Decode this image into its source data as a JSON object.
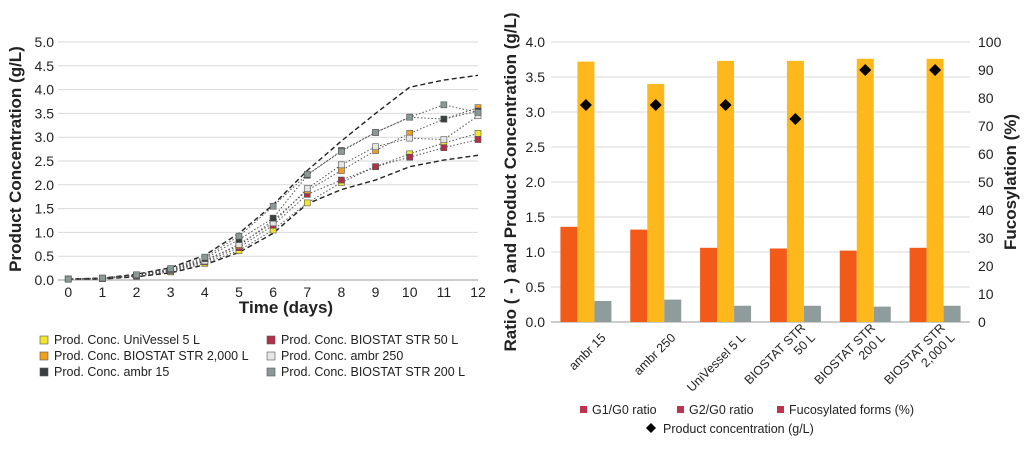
{
  "chart_data": [
    {
      "type": "line",
      "xlabel": "Time (days)",
      "ylabel": "Product Concentration (g/L)",
      "x": [
        0,
        1,
        2,
        3,
        4,
        5,
        6,
        7,
        8,
        9,
        10,
        11,
        12
      ],
      "xlim": [
        -0.3,
        12
      ],
      "ylim": [
        0,
        5
      ],
      "x_ticks": [
        "0",
        "1",
        "2",
        "3",
        "4",
        "5",
        "6",
        "7",
        "8",
        "9",
        "10",
        "11",
        "12"
      ],
      "y_ticks": [
        "0.0",
        "0.5",
        "1.0",
        "1.5",
        "2.0",
        "2.5",
        "3.0",
        "3.5",
        "4.0",
        "4.5",
        "5.0"
      ],
      "grid": true,
      "legend_position": "bottom",
      "series": [
        {
          "name": "Prod. Conc. UniVessel 5 L",
          "color": "#f2e632",
          "values": [
            0.02,
            0.03,
            0.08,
            0.17,
            0.35,
            0.62,
            1.05,
            1.62,
            2.05,
            2.38,
            2.65,
            2.88,
            3.08
          ]
        },
        {
          "name": "Prod. Conc. BIOSTAT STR 50 L",
          "color": "#b43048",
          "values": [
            0.02,
            0.03,
            0.09,
            0.19,
            0.38,
            0.68,
            1.15,
            1.8,
            2.1,
            2.38,
            2.58,
            2.78,
            2.95
          ]
        },
        {
          "name": "Prod. Conc. BIOSTAT STR 2,000 L",
          "color": "#f0a020",
          "values": [
            0.02,
            0.03,
            0.1,
            0.21,
            0.42,
            0.72,
            1.25,
            1.88,
            2.3,
            2.72,
            3.08,
            3.38,
            3.62
          ]
        },
        {
          "name": "Prod. Conc. ambr 250",
          "color": "#e6e6e6",
          "values": [
            0.02,
            0.03,
            0.09,
            0.2,
            0.4,
            0.75,
            1.2,
            1.92,
            2.42,
            2.8,
            2.98,
            2.95,
            3.45
          ]
        },
        {
          "name": "Prod. Conc. ambr 15",
          "color": "#3a3f3f",
          "values": [
            0.02,
            0.04,
            0.1,
            0.22,
            0.45,
            0.85,
            1.3,
            2.2,
            2.72,
            3.1,
            3.42,
            3.38,
            3.55
          ]
        },
        {
          "name": "Prod. Conc. BIOSTAT STR 200 L",
          "color": "#8a9898",
          "values": [
            0.02,
            0.04,
            0.11,
            0.24,
            0.48,
            0.92,
            1.55,
            2.22,
            2.7,
            3.1,
            3.42,
            3.68,
            3.52
          ]
        }
      ],
      "bounds": [
        {
          "name": "upper",
          "values": [
            0.02,
            0.04,
            0.12,
            0.26,
            0.52,
            0.98,
            1.58,
            2.3,
            2.92,
            3.5,
            4.05,
            4.2,
            4.3
          ]
        },
        {
          "name": "lower",
          "values": [
            0.02,
            0.02,
            0.07,
            0.15,
            0.32,
            0.58,
            0.98,
            1.6,
            1.9,
            2.1,
            2.38,
            2.52,
            2.62
          ]
        }
      ]
    },
    {
      "type": "bar",
      "ylabel": "Ratio ( - ) and Product Concentration (g/L)",
      "y2label": "Fucosylation (%)",
      "categories": [
        "ambr 15",
        "ambr 250",
        "UniVessel 5 L",
        "BIOSTAT STR 50 L",
        "BIOSTAT STR 200 L",
        "BIOSTAT STR 2,000 L"
      ],
      "category_lines": [
        [
          "ambr 15"
        ],
        [
          "ambr 250"
        ],
        [
          "UniVessel 5 L"
        ],
        [
          "BIOSTAT STR",
          "50 L"
        ],
        [
          "BIOSTAT STR",
          "200 L"
        ],
        [
          "BIOSTAT STR",
          "2,000 L"
        ]
      ],
      "ylim": [
        0,
        4
      ],
      "y2lim": [
        0,
        100
      ],
      "y_ticks": [
        "0.0",
        "0.5",
        "1.0",
        "1.5",
        "2.0",
        "2.5",
        "3.0",
        "3.5",
        "4.0"
      ],
      "y2_ticks": [
        "0",
        "10",
        "20",
        "30",
        "40",
        "50",
        "60",
        "70",
        "80",
        "90",
        "100"
      ],
      "grid": true,
      "legend_position": "bottom",
      "series": [
        {
          "name": "G1/G0 ratio",
          "color": "#f25a1a",
          "axis": "left",
          "values": [
            1.36,
            1.32,
            1.06,
            1.05,
            1.02,
            1.06
          ]
        },
        {
          "name": "G2/G0 ratio",
          "color": "#ffb81c",
          "axis": "left",
          "values": [
            3.72,
            3.4,
            3.73,
            3.73,
            3.76,
            3.76
          ]
        },
        {
          "name": "Fucosylated forms (%)",
          "color": "#8e9c9c",
          "axis": "right",
          "values": [
            7.5,
            8.0,
            5.8,
            5.8,
            5.5,
            5.8
          ]
        }
      ],
      "markers": {
        "name": "Product concentration (g/L)",
        "color": "#000000",
        "values": [
          3.1,
          3.1,
          3.1,
          2.9,
          3.6,
          3.6
        ]
      }
    }
  ]
}
